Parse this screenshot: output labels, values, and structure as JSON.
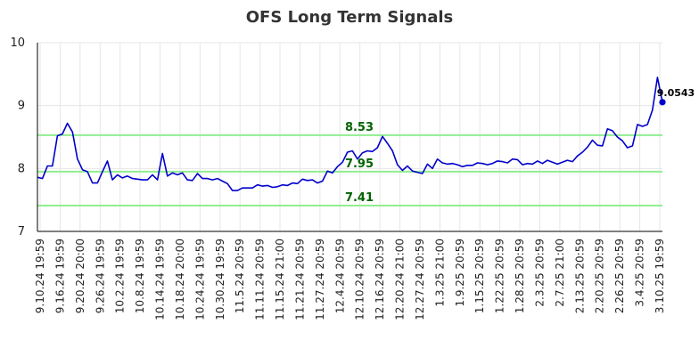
{
  "chart_data": {
    "type": "line",
    "title": "OFS Long Term Signals",
    "xlabel": "",
    "ylabel": "",
    "ylim": [
      7,
      10
    ],
    "yticks": [
      7,
      8,
      9,
      10
    ],
    "grid": true,
    "colors": {
      "line": "#0000cc",
      "hline": "#90ee90",
      "hlabel": "#006400",
      "grid": "#e6e6e6",
      "axis": "#000000"
    },
    "tick_labels": [
      "9.10.24 19:59",
      "9.16.24 19:59",
      "9.20.24 20:00",
      "9.26.24 19:59",
      "10.2.24 19:59",
      "10.8.24 19:59",
      "10.14.24 19:59",
      "10.18.24 20:00",
      "10.24.24 19:59",
      "10.30.24 19:59",
      "11.5.24 20:59",
      "11.11.24 20:59",
      "11.15.24 21:00",
      "11.21.24 20:59",
      "11.27.24 20:59",
      "12.4.24 20:59",
      "12.10.24 20:59",
      "12.16.24 20:59",
      "12.20.24 21:00",
      "12.27.24 20:59",
      "1.3.25 21:00",
      "1.9.25 20:59",
      "1.15.25 20:59",
      "1.22.25 20:59",
      "1.28.25 20:59",
      "2.3.25 20:59",
      "2.7.25 21:00",
      "2.13.25 20:59",
      "2.20.25 20:59",
      "2.26.25 20:59",
      "3.4.25 20:59",
      "3.10.25 19:59"
    ],
    "horizontal_lines": [
      {
        "value": 8.53,
        "label": "8.53"
      },
      {
        "value": 7.95,
        "label": "7.95"
      },
      {
        "value": 7.41,
        "label": "7.41"
      }
    ],
    "last_value": 9.0543,
    "last_label": "9.0543",
    "values": [
      7.86,
      7.84,
      8.04,
      8.04,
      8.52,
      8.55,
      8.72,
      8.58,
      8.15,
      7.98,
      7.95,
      7.77,
      7.77,
      7.95,
      8.12,
      7.82,
      7.9,
      7.85,
      7.88,
      7.84,
      7.83,
      7.82,
      7.82,
      7.9,
      7.82,
      8.24,
      7.88,
      7.93,
      7.9,
      7.93,
      7.82,
      7.81,
      7.92,
      7.84,
      7.84,
      7.82,
      7.84,
      7.8,
      7.76,
      7.65,
      7.65,
      7.69,
      7.69,
      7.69,
      7.74,
      7.72,
      7.73,
      7.7,
      7.71,
      7.74,
      7.73,
      7.77,
      7.76,
      7.83,
      7.81,
      7.82,
      7.77,
      7.8,
      7.96,
      7.93,
      8.03,
      8.1,
      8.26,
      8.28,
      8.15,
      8.25,
      8.28,
      8.27,
      8.33,
      8.51,
      8.4,
      8.28,
      8.06,
      7.97,
      8.04,
      7.96,
      7.94,
      7.92,
      8.07,
      8.0,
      8.15,
      8.09,
      8.07,
      8.08,
      8.06,
      8.03,
      8.05,
      8.05,
      8.09,
      8.08,
      8.06,
      8.08,
      8.12,
      8.11,
      8.09,
      8.15,
      8.14,
      8.06,
      8.08,
      8.07,
      8.12,
      8.08,
      8.13,
      8.1,
      8.07,
      8.1,
      8.13,
      8.11,
      8.2,
      8.26,
      8.34,
      8.45,
      8.37,
      8.36,
      8.63,
      8.6,
      8.5,
      8.44,
      8.33,
      8.36,
      8.7,
      8.67,
      8.7,
      8.93,
      9.45,
      9.05
    ]
  }
}
